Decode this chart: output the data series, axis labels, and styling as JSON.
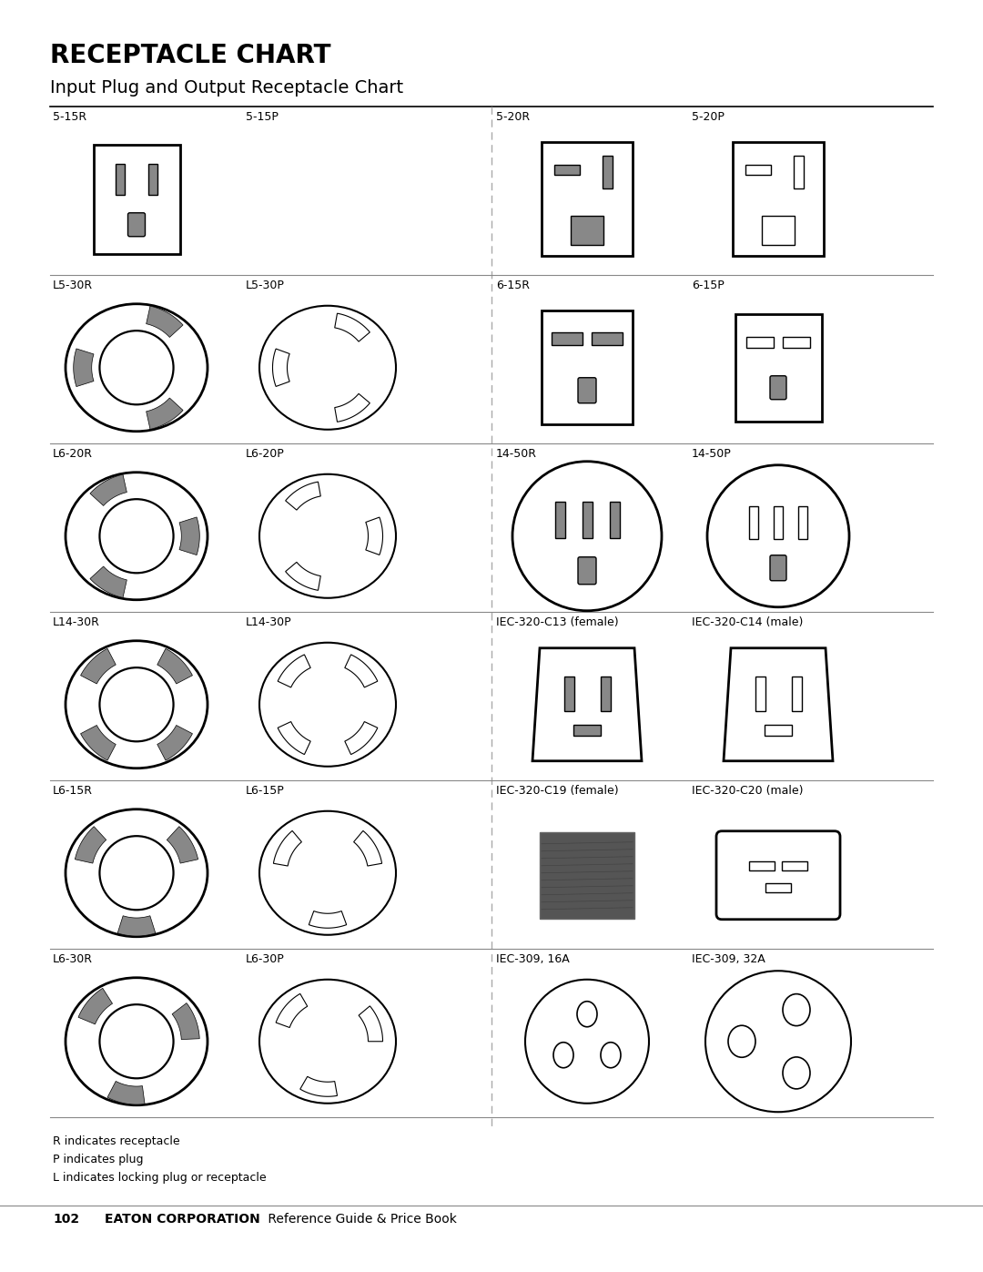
{
  "title_bold": "RECEPTACLE CHART",
  "title_sub": "Input Plug and Output Receptacle Chart",
  "bg_color": "#ffffff",
  "line_color": "#000000",
  "text_color": "#000000",
  "footer_page": "102",
  "footer_company": "EATON CORPORATION",
  "footer_rest": " Reference Guide & Price Book",
  "footnote1": "R indicates receptacle",
  "footnote2": "P indicates plug",
  "footnote3": "L indicates locking plug or receptacle",
  "rows": [
    {
      "labels": [
        "5-15R",
        "5-15P",
        "5-20R",
        "5-20P"
      ]
    },
    {
      "labels": [
        "L5-30R",
        "L5-30P",
        "6-15R",
        "6-15P"
      ]
    },
    {
      "labels": [
        "L6-20R",
        "L6-20P",
        "14-50R",
        "14-50P"
      ]
    },
    {
      "labels": [
        "L14-30R",
        "L14-30P",
        "IEC-320-C13 (female)",
        "IEC-320-C14 (male)"
      ]
    },
    {
      "labels": [
        "L6-15R",
        "L6-15P",
        "IEC-320-C19 (female)",
        "IEC-320-C20 (male)"
      ]
    },
    {
      "labels": [
        "L6-30R",
        "L6-30P",
        "IEC-309, 16A",
        "IEC-309, 32A"
      ]
    }
  ]
}
